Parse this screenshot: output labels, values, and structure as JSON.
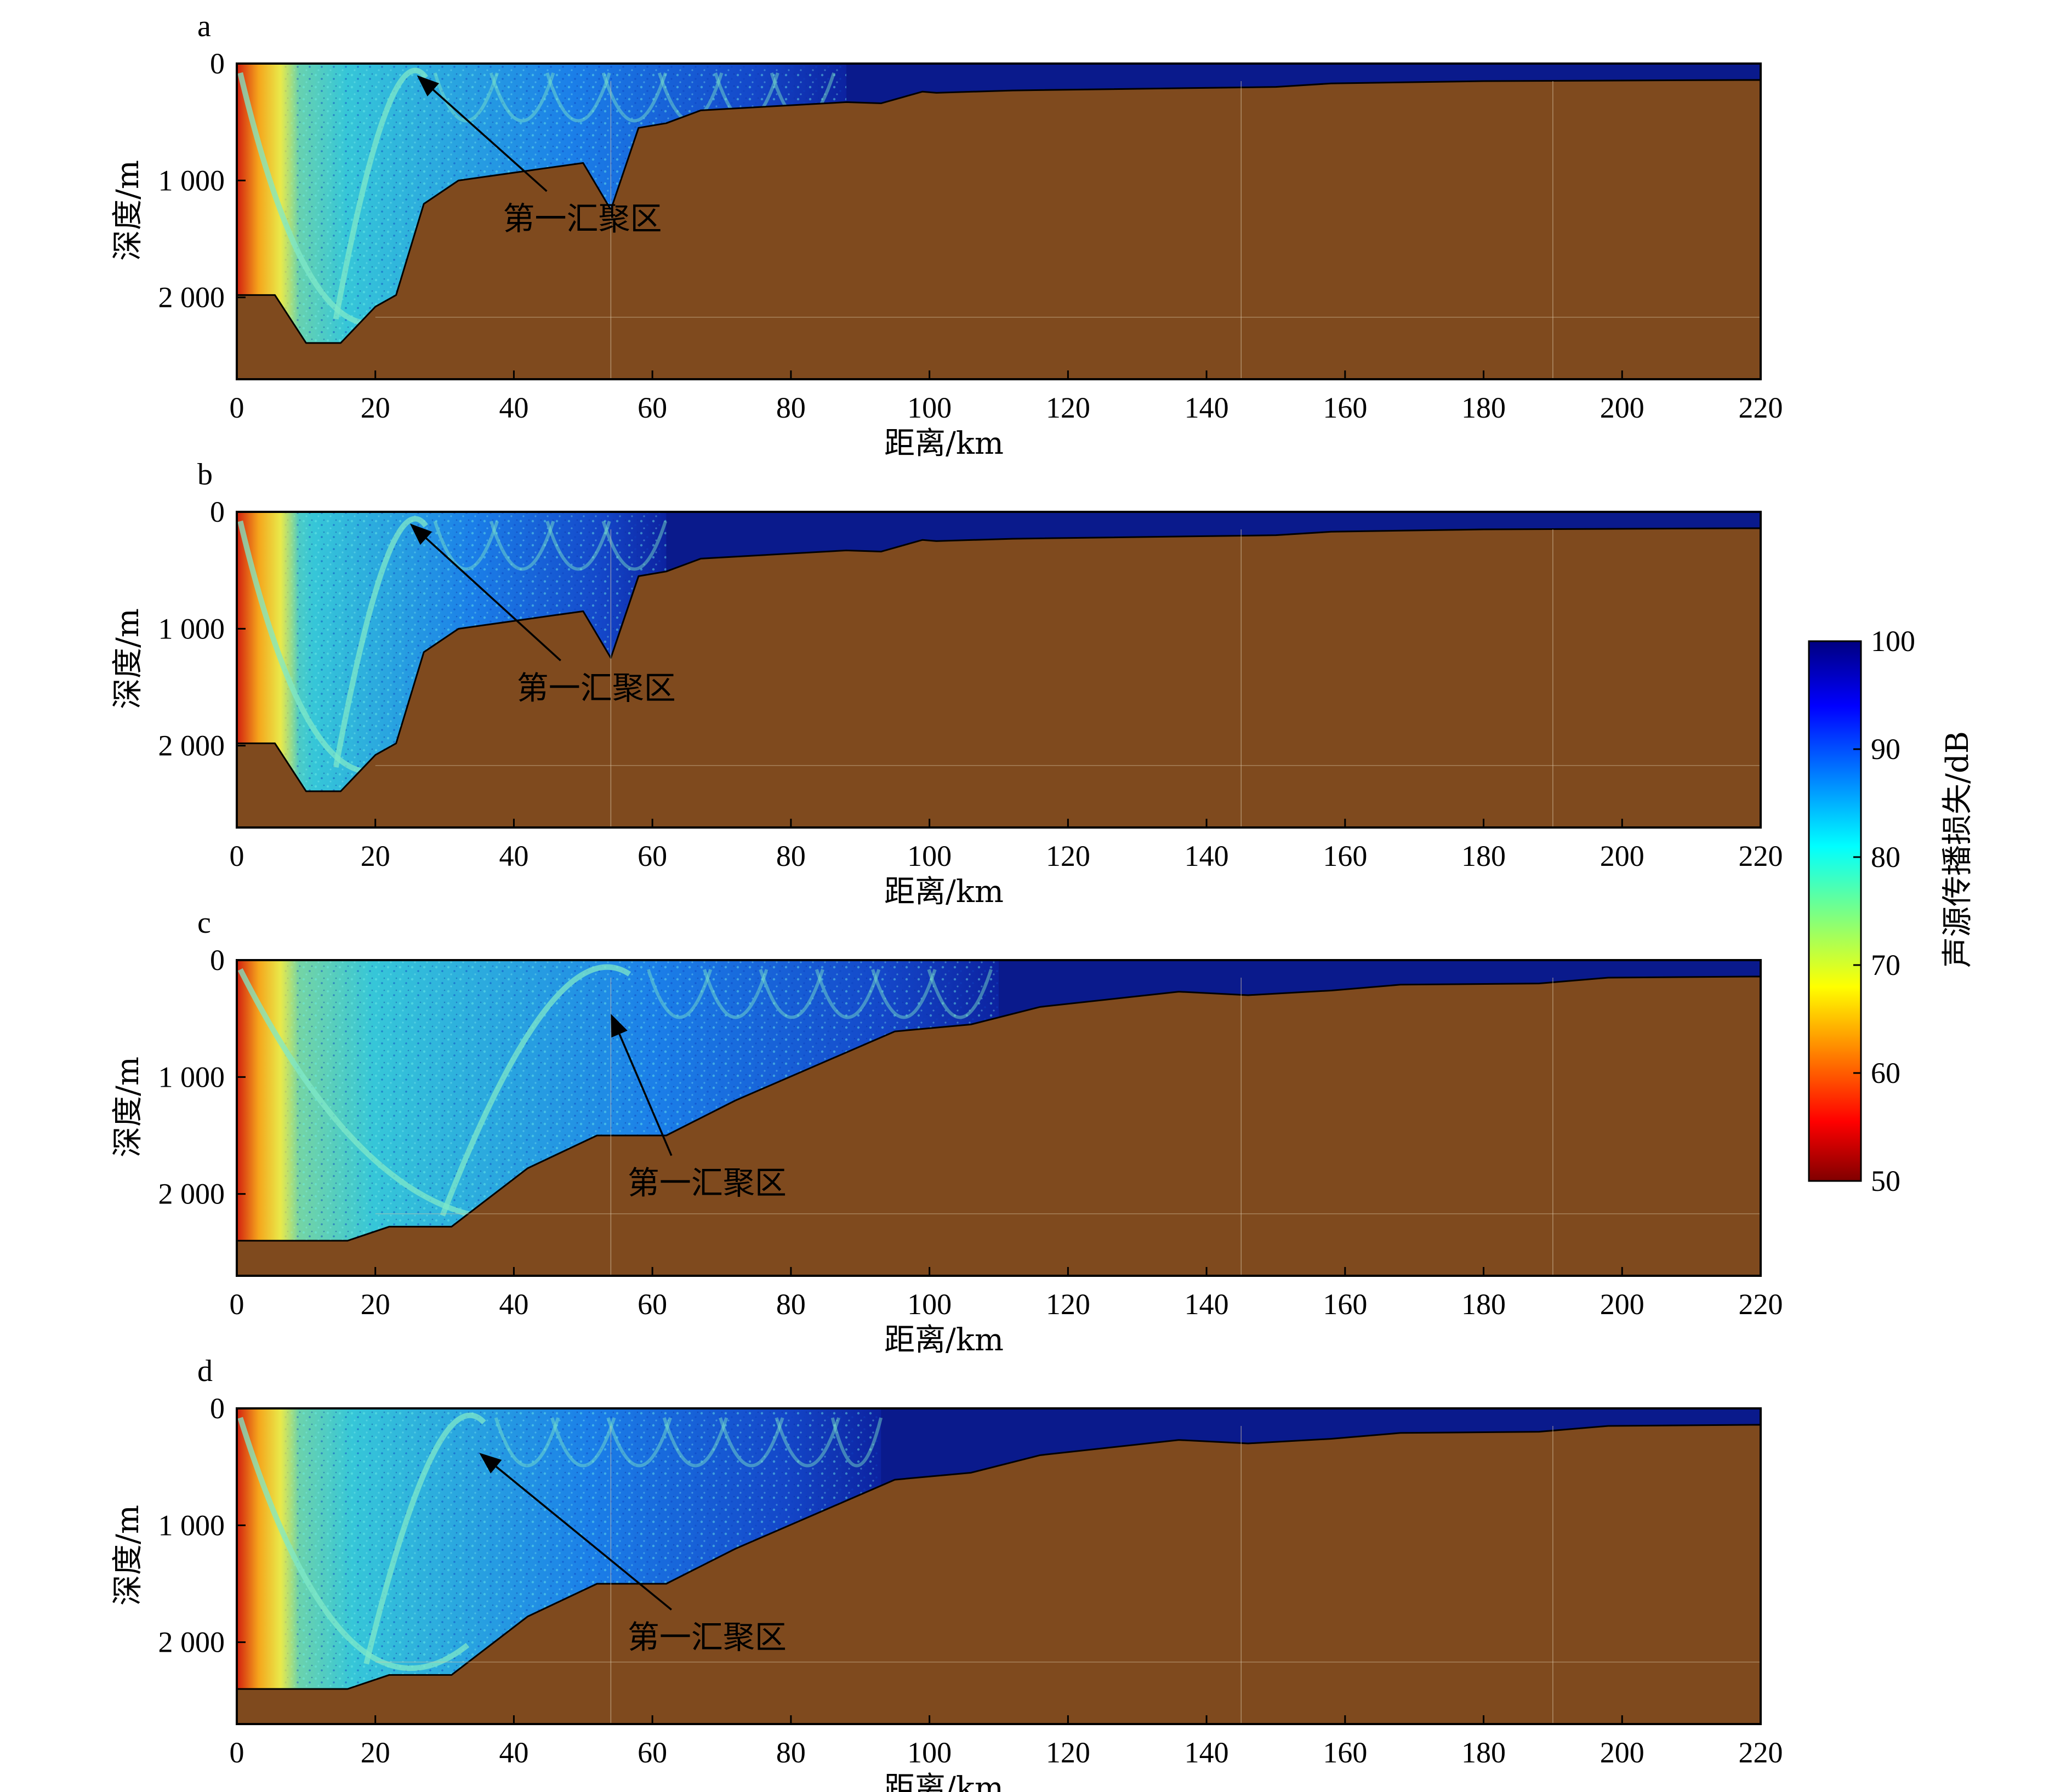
{
  "figure": {
    "colorbar": {
      "label": "声源传播损失/dB",
      "min": 50,
      "max": 100,
      "ticks": [
        "100",
        "90",
        "80",
        "70",
        "60",
        "50"
      ],
      "colormap": "jet"
    },
    "colors": {
      "seabed": "#7f4a1e",
      "deep_water": "#0a1a8c",
      "sound_field_base": "#1a6fe0",
      "source_hot": "#d21f0f",
      "convergence_ring": "#7fe8c8"
    }
  },
  "chart_data": [
    {
      "type": "heatmap",
      "panel_label": "a",
      "xlabel": "距离/km",
      "ylabel": "深度/m",
      "xlim": [
        0,
        220
      ],
      "ylim": [
        0,
        2700
      ],
      "x_ticks": [
        "0",
        "20",
        "40",
        "60",
        "80",
        "100",
        "120",
        "140",
        "160",
        "180",
        "200",
        "220"
      ],
      "y_ticks": [
        "0",
        "1 000",
        "2 000"
      ],
      "grid": false,
      "field_extent_km": 88,
      "convergence_zone_km": 26,
      "bathymetry": [
        [
          0,
          1980
        ],
        [
          5.5,
          1980
        ],
        [
          10,
          2390
        ],
        [
          15,
          2390
        ],
        [
          20,
          2080
        ],
        [
          23,
          1980
        ],
        [
          27,
          1200
        ],
        [
          32,
          1000
        ],
        [
          50,
          850
        ],
        [
          54,
          1250
        ],
        [
          58,
          550
        ],
        [
          62,
          510
        ],
        [
          67,
          400
        ],
        [
          88,
          330
        ],
        [
          93,
          340
        ],
        [
          99,
          240
        ],
        [
          101,
          250
        ],
        [
          112,
          230
        ],
        [
          150,
          200
        ],
        [
          158,
          170
        ],
        [
          180,
          150
        ],
        [
          220,
          140
        ]
      ],
      "annotation": {
        "text": "第一汇聚区",
        "target": [
          26,
          100
        ],
        "text_pos": [
          40,
          1420
        ]
      }
    },
    {
      "type": "heatmap",
      "panel_label": "b",
      "xlabel": "距离/km",
      "ylabel": "深度/m",
      "xlim": [
        0,
        220
      ],
      "ylim": [
        0,
        2700
      ],
      "x_ticks": [
        "0",
        "20",
        "40",
        "60",
        "80",
        "100",
        "120",
        "140",
        "160",
        "180",
        "200",
        "220"
      ],
      "y_ticks": [
        "0",
        "1 000",
        "2 000"
      ],
      "grid": false,
      "field_extent_km": 62,
      "convergence_zone_km": 26,
      "bathymetry": [
        [
          0,
          1980
        ],
        [
          5.5,
          1980
        ],
        [
          10,
          2390
        ],
        [
          15,
          2390
        ],
        [
          20,
          2080
        ],
        [
          23,
          1980
        ],
        [
          27,
          1200
        ],
        [
          32,
          1000
        ],
        [
          50,
          850
        ],
        [
          54,
          1250
        ],
        [
          58,
          550
        ],
        [
          62,
          510
        ],
        [
          67,
          400
        ],
        [
          88,
          330
        ],
        [
          93,
          340
        ],
        [
          99,
          240
        ],
        [
          101,
          250
        ],
        [
          112,
          230
        ],
        [
          150,
          200
        ],
        [
          158,
          170
        ],
        [
          180,
          150
        ],
        [
          220,
          140
        ]
      ],
      "annotation": {
        "text": "第一汇聚区",
        "target": [
          25,
          100
        ],
        "text_pos": [
          42,
          1600
        ]
      }
    },
    {
      "type": "heatmap",
      "panel_label": "c",
      "xlabel": "距离/km",
      "ylabel": "深度/m",
      "xlim": [
        0,
        220
      ],
      "ylim": [
        0,
        2700
      ],
      "x_ticks": [
        "0",
        "20",
        "40",
        "60",
        "80",
        "100",
        "120",
        "140",
        "160",
        "180",
        "200",
        "220"
      ],
      "y_ticks": [
        "0",
        "1 000",
        "2 000"
      ],
      "grid": false,
      "field_extent_km": 110,
      "convergence_zone_km": 54,
      "bathymetry": [
        [
          0,
          2400
        ],
        [
          16,
          2400
        ],
        [
          22,
          2280
        ],
        [
          31,
          2280
        ],
        [
          42,
          1780
        ],
        [
          52,
          1500
        ],
        [
          62,
          1500
        ],
        [
          72,
          1200
        ],
        [
          95,
          610
        ],
        [
          106,
          550
        ],
        [
          116,
          400
        ],
        [
          136,
          270
        ],
        [
          146,
          300
        ],
        [
          158,
          260
        ],
        [
          168,
          210
        ],
        [
          188,
          200
        ],
        [
          198,
          150
        ],
        [
          220,
          140
        ]
      ],
      "annotation": {
        "text": "第一汇聚区",
        "target": [
          54,
          460
        ],
        "text_pos": [
          58,
          2000
        ]
      }
    },
    {
      "type": "heatmap",
      "panel_label": "d",
      "xlabel": "距离/km",
      "ylabel": "深度/m",
      "xlim": [
        0,
        220
      ],
      "ylim": [
        0,
        2700
      ],
      "x_ticks": [
        "0",
        "20",
        "40",
        "60",
        "80",
        "100",
        "120",
        "140",
        "160",
        "180",
        "200",
        "220"
      ],
      "y_ticks": [
        "0",
        "1 000",
        "2 000"
      ],
      "grid": false,
      "field_extent_km": 93,
      "convergence_zone_km": 34,
      "bathymetry": [
        [
          0,
          2400
        ],
        [
          16,
          2400
        ],
        [
          22,
          2280
        ],
        [
          31,
          2280
        ],
        [
          42,
          1780
        ],
        [
          52,
          1500
        ],
        [
          62,
          1500
        ],
        [
          72,
          1200
        ],
        [
          95,
          610
        ],
        [
          106,
          550
        ],
        [
          116,
          400
        ],
        [
          136,
          270
        ],
        [
          146,
          300
        ],
        [
          158,
          260
        ],
        [
          168,
          210
        ],
        [
          188,
          200
        ],
        [
          198,
          150
        ],
        [
          220,
          140
        ]
      ],
      "annotation": {
        "text": "第一汇聚区",
        "target": [
          35,
          380
        ],
        "text_pos": [
          58,
          2050
        ]
      }
    }
  ]
}
